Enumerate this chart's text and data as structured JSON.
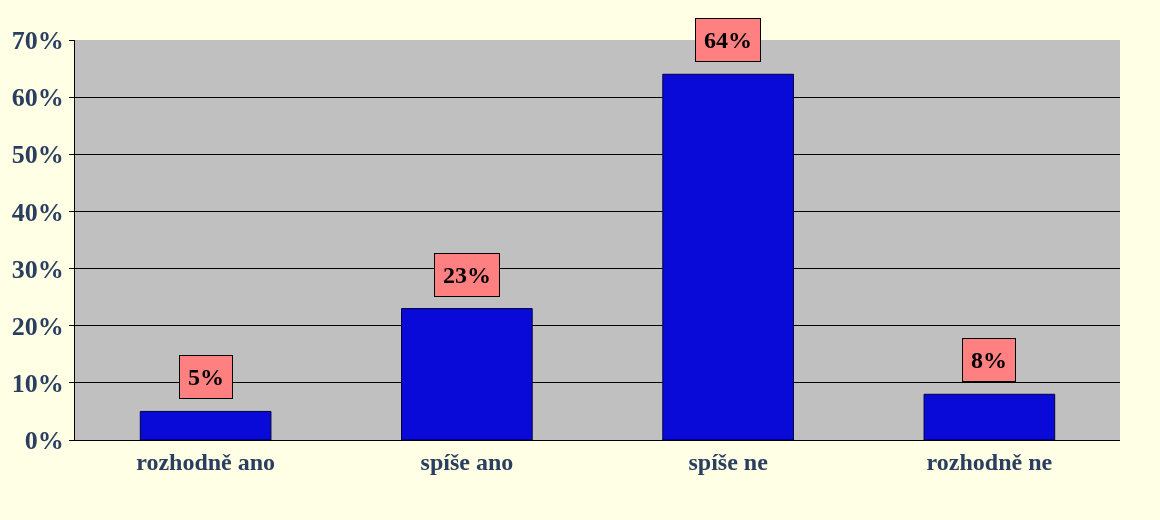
{
  "chart_data": {
    "type": "bar",
    "categories": [
      "rozhodně ano",
      "spíše ano",
      "spíše ne",
      "rozhodně ne"
    ],
    "values": [
      5,
      23,
      64,
      8
    ],
    "value_labels": [
      "5%",
      "23%",
      "64%",
      "8%"
    ],
    "color": "#0a0ad8",
    "ylim": [
      0,
      70
    ],
    "yticks": [
      {
        "value": 0,
        "label": "0%"
      },
      {
        "value": 10,
        "label": "10%"
      },
      {
        "value": 20,
        "label": "20%"
      },
      {
        "value": 30,
        "label": "30%"
      },
      {
        "value": 40,
        "label": "40%"
      },
      {
        "value": 50,
        "label": "50%"
      },
      {
        "value": 60,
        "label": "60%"
      },
      {
        "value": 70,
        "label": "70%"
      }
    ],
    "grid": "y",
    "legend": false
  }
}
